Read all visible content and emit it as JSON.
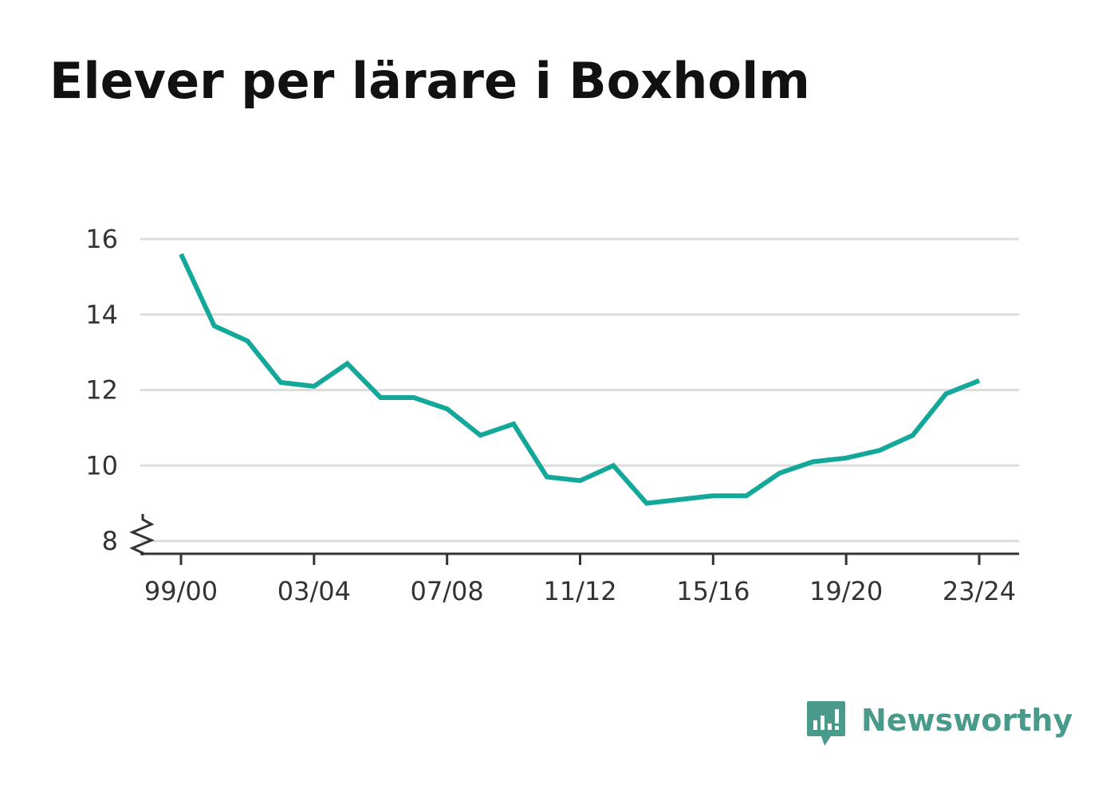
{
  "title": "Elever per lärare i Boxholm",
  "brand": {
    "name": "Newsworthy",
    "icon": "newsworthy-logo-icon",
    "color": "#4a9a8c"
  },
  "chart_data": {
    "type": "line",
    "title": "Elever per lärare i Boxholm",
    "xlabel": "",
    "ylabel": "",
    "x_tick_labels": [
      "99/00",
      "03/04",
      "07/08",
      "11/12",
      "15/16",
      "19/20",
      "23/24"
    ],
    "y_ticks": [
      8,
      10,
      12,
      14,
      16
    ],
    "ylim": [
      8,
      16
    ],
    "y_axis_break": true,
    "grid": true,
    "legend": "none",
    "line_color": "#13a89a",
    "series": [
      {
        "x": [
          "99/00",
          "00/01",
          "01/02",
          "02/03",
          "03/04",
          "04/05",
          "05/06",
          "06/07",
          "07/08",
          "08/09",
          "09/10",
          "10/11",
          "11/12",
          "12/13",
          "13/14",
          "14/15",
          "15/16",
          "16/17",
          "17/18",
          "18/19",
          "19/20",
          "20/21",
          "21/22",
          "22/23",
          "23/24"
        ],
        "values": [
          15.6,
          13.7,
          13.3,
          12.2,
          12.1,
          12.7,
          11.8,
          11.8,
          11.5,
          10.8,
          11.1,
          9.7,
          9.6,
          10.0,
          9.0,
          9.1,
          9.2,
          9.2,
          9.8,
          10.1,
          10.2,
          10.4,
          10.8,
          11.9,
          12.25
        ]
      }
    ]
  }
}
